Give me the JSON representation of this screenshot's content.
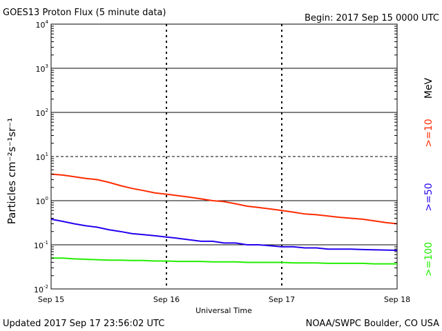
{
  "chart_data": {
    "type": "line",
    "title": "GOES13 Proton Flux (5 minute data)",
    "begin_label": "Begin: 2017 Sep 15 0000 UTC",
    "xlabel": "Universal Time",
    "ylabel": "Particles cm⁻²s⁻¹sr⁻¹",
    "unit_label": "MeV",
    "updated_label": "Updated 2017 Sep 17 23:56:02 UTC",
    "credit_label": "NOAA/SWPC Boulder, CO USA",
    "y_scale": "log",
    "ylim": [
      0.01,
      10000
    ],
    "y_ticks": [
      {
        "base": "10",
        "exp": "4",
        "value": 10000
      },
      {
        "base": "10",
        "exp": "3",
        "value": 1000
      },
      {
        "base": "10",
        "exp": "2",
        "value": 100
      },
      {
        "base": "10",
        "exp": "1",
        "value": 10
      },
      {
        "base": "10",
        "exp": "0",
        "value": 1
      },
      {
        "base": "10",
        "exp": "-1",
        "value": 0.1
      },
      {
        "base": "10",
        "exp": "-2",
        "value": 0.01
      }
    ],
    "x_ticks": [
      "Sep 15",
      "Sep 16",
      "Sep 17",
      "Sep 18"
    ],
    "xlim": [
      "2017-09-15",
      "2017-09-18"
    ],
    "grid": true,
    "series": [
      {
        "name": ">=10",
        "color": "#ff2a00",
        "x_days": [
          0,
          0.1,
          0.2,
          0.3,
          0.4,
          0.5,
          0.6,
          0.7,
          0.8,
          0.9,
          1.0,
          1.1,
          1.2,
          1.3,
          1.4,
          1.5,
          1.6,
          1.7,
          1.8,
          1.9,
          2.0,
          2.1,
          2.2,
          2.3,
          2.4,
          2.5,
          2.6,
          2.7,
          2.8,
          2.9,
          3.0
        ],
        "values": [
          4.0,
          3.8,
          3.5,
          3.2,
          3.0,
          2.6,
          2.2,
          1.9,
          1.7,
          1.5,
          1.4,
          1.3,
          1.2,
          1.1,
          1.0,
          0.95,
          0.85,
          0.75,
          0.7,
          0.65,
          0.6,
          0.55,
          0.5,
          0.48,
          0.45,
          0.42,
          0.4,
          0.38,
          0.35,
          0.32,
          0.3
        ]
      },
      {
        "name": ">=50",
        "color": "#2200ee",
        "x_days": [
          0,
          0.1,
          0.2,
          0.3,
          0.4,
          0.5,
          0.6,
          0.7,
          0.8,
          0.9,
          1.0,
          1.1,
          1.2,
          1.3,
          1.4,
          1.5,
          1.6,
          1.7,
          1.8,
          1.9,
          2.0,
          2.1,
          2.2,
          2.3,
          2.4,
          2.5,
          2.6,
          2.7,
          2.8,
          2.9,
          3.0
        ],
        "values": [
          0.38,
          0.34,
          0.3,
          0.27,
          0.25,
          0.22,
          0.2,
          0.18,
          0.17,
          0.16,
          0.15,
          0.14,
          0.13,
          0.12,
          0.12,
          0.11,
          0.11,
          0.1,
          0.1,
          0.095,
          0.09,
          0.09,
          0.085,
          0.085,
          0.08,
          0.08,
          0.08,
          0.078,
          0.077,
          0.076,
          0.075
        ]
      },
      {
        "name": ">=100",
        "color": "#22ee00",
        "x_days": [
          0,
          0.1,
          0.2,
          0.3,
          0.4,
          0.5,
          0.6,
          0.7,
          0.8,
          0.9,
          1.0,
          1.1,
          1.2,
          1.3,
          1.4,
          1.5,
          1.6,
          1.7,
          1.8,
          1.9,
          2.0,
          2.1,
          2.2,
          2.3,
          2.4,
          2.5,
          2.6,
          2.7,
          2.8,
          2.9,
          3.0
        ],
        "values": [
          0.05,
          0.05,
          0.048,
          0.047,
          0.046,
          0.045,
          0.045,
          0.044,
          0.044,
          0.043,
          0.043,
          0.042,
          0.042,
          0.042,
          0.041,
          0.041,
          0.041,
          0.04,
          0.04,
          0.04,
          0.04,
          0.039,
          0.039,
          0.039,
          0.038,
          0.038,
          0.038,
          0.038,
          0.037,
          0.037,
          0.037
        ]
      }
    ]
  }
}
